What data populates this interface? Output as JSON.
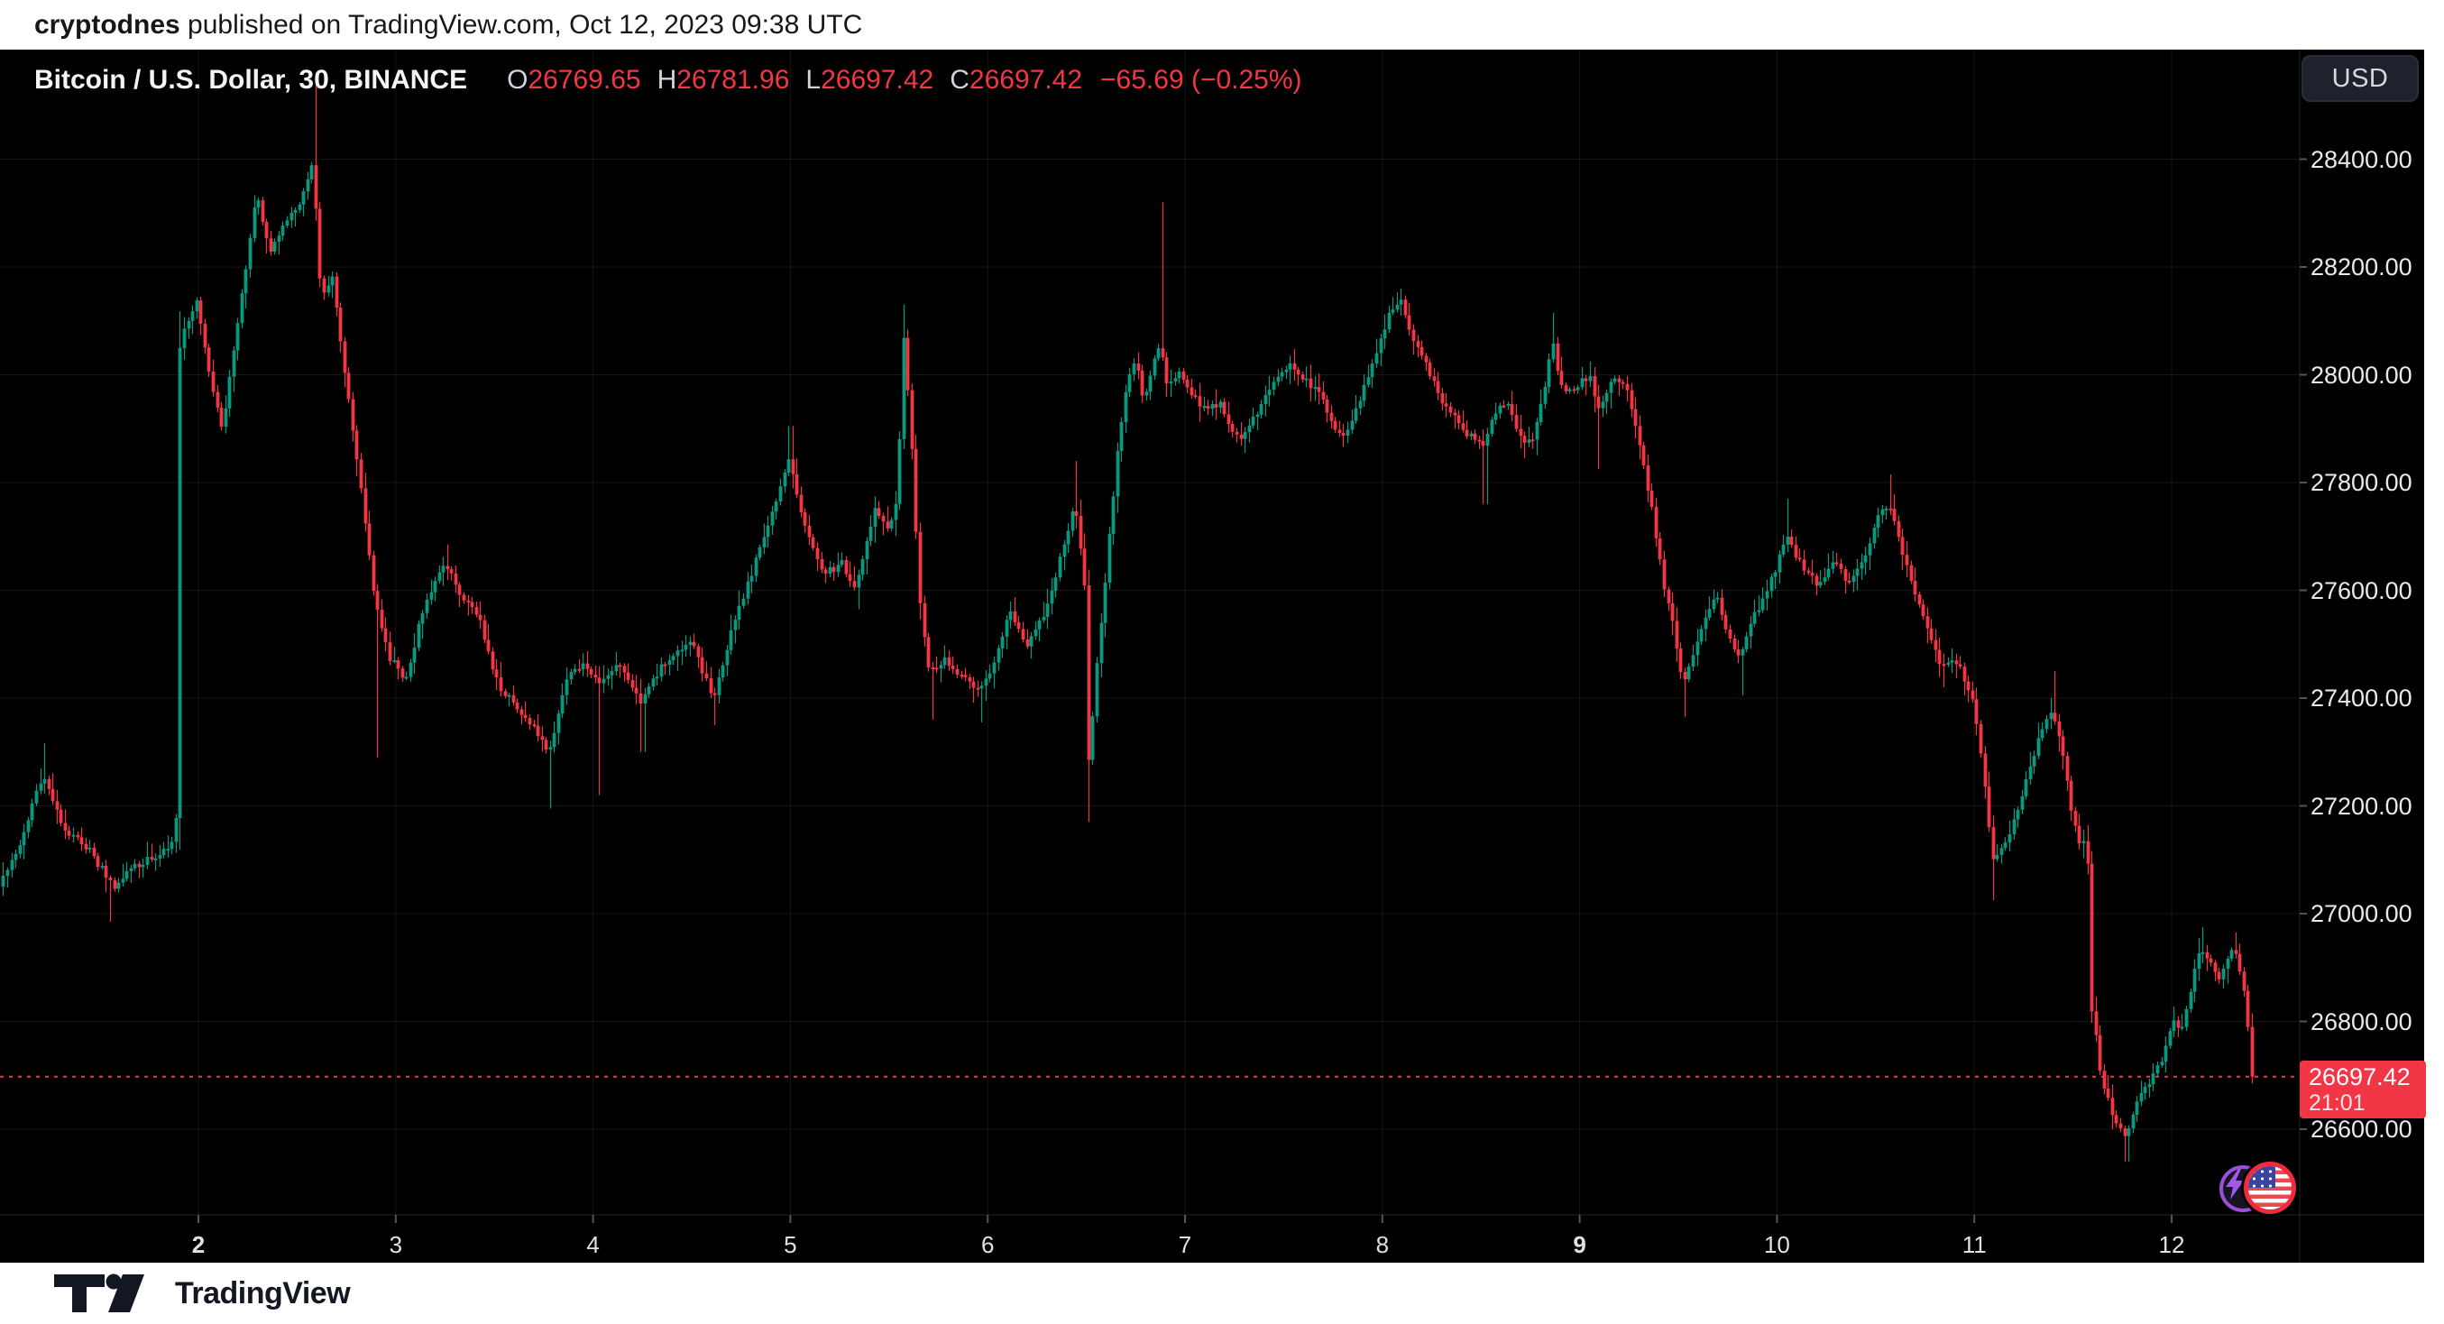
{
  "banner": {
    "author": "cryptodnes",
    "rest": " published on TradingView.com, Oct 12, 2023 09:38 UTC"
  },
  "legend": {
    "title": "Bitcoin / U.S. Dollar, 30, BINANCE",
    "items": [
      {
        "label": "O",
        "value": "26769.65"
      },
      {
        "label": "H",
        "value": "26781.96"
      },
      {
        "label": "L",
        "value": "26697.42"
      },
      {
        "label": "C",
        "value": "26697.42"
      }
    ],
    "change": "−65.69 (−0.25%)"
  },
  "currency_button": {
    "label": "USD"
  },
  "price_scale": {
    "tick_labels": [
      "28400.00",
      "28200.00",
      "28000.00",
      "27800.00",
      "27600.00",
      "27400.00",
      "27200.00",
      "27000.00",
      "26800.00",
      "26600.00"
    ],
    "tag": {
      "line1": "26697.42",
      "line2": "21:01"
    }
  },
  "time_scale": {
    "ticks": [
      {
        "day": 2,
        "label": "2",
        "bold": true
      },
      {
        "day": 3,
        "label": "3",
        "bold": false
      },
      {
        "day": 4,
        "label": "4",
        "bold": false
      },
      {
        "day": 5,
        "label": "5",
        "bold": false
      },
      {
        "day": 6,
        "label": "6",
        "bold": false
      },
      {
        "day": 7,
        "label": "7",
        "bold": false
      },
      {
        "day": 8,
        "label": "8",
        "bold": false
      },
      {
        "day": 9,
        "label": "9",
        "bold": true
      },
      {
        "day": 10,
        "label": "10",
        "bold": false
      },
      {
        "day": 11,
        "label": "11",
        "bold": false
      },
      {
        "day": 12,
        "label": "12",
        "bold": false
      }
    ]
  },
  "footer": {
    "brand": "TradingView"
  },
  "colors": {
    "up": "#089981",
    "down": "#f23645",
    "background": "#000000",
    "grid": "rgba(255,255,255,0.08)",
    "axis_border": "rgba(255,255,255,0.14)",
    "axis_tick": "#50545e",
    "axis_text": "#e8eaec",
    "tag_bg": "#f23645",
    "dotted_line": "#f23645"
  },
  "chart_data": {
    "type": "candlestick",
    "symbol": "Bitcoin / U.S. Dollar",
    "interval": "30",
    "exchange": "BINANCE",
    "currency": "USD",
    "ohlc_current": {
      "open": 26769.65,
      "high": 26781.96,
      "low": 26697.42,
      "close": 26697.42,
      "change": -65.69,
      "change_pct": -0.25
    },
    "last_price": 26697.42,
    "countdown": "21:01",
    "y_axis": {
      "min": 26450,
      "max": 28620,
      "ticks": [
        28400,
        28200,
        28000,
        27800,
        27600,
        27400,
        27200,
        27000,
        26800,
        26600
      ]
    },
    "x_axis": {
      "days_oct_2023": [
        2,
        3,
        4,
        5,
        6,
        7,
        8,
        9,
        10,
        11,
        12
      ],
      "bold_days": [
        2,
        9
      ]
    },
    "bars_per_day": 48,
    "t_start": 1.0,
    "t_end": 12.42,
    "price_path": [
      [
        1.0,
        27050
      ],
      [
        1.1,
        27120
      ],
      [
        1.22,
        27260
      ],
      [
        1.32,
        27160
      ],
      [
        1.45,
        27120
      ],
      [
        1.58,
        27050
      ],
      [
        1.7,
        27090
      ],
      [
        1.82,
        27110
      ],
      [
        1.895,
        27140
      ],
      [
        1.917,
        28065
      ],
      [
        2.0,
        28140
      ],
      [
        2.06,
        28010
      ],
      [
        2.13,
        27900
      ],
      [
        2.22,
        28120
      ],
      [
        2.3,
        28340
      ],
      [
        2.37,
        28230
      ],
      [
        2.45,
        28280
      ],
      [
        2.53,
        28320
      ],
      [
        2.59,
        28400
      ],
      [
        2.63,
        28140
      ],
      [
        2.69,
        28180
      ],
      [
        2.75,
        28010
      ],
      [
        2.82,
        27830
      ],
      [
        2.9,
        27590
      ],
      [
        2.97,
        27480
      ],
      [
        3.06,
        27430
      ],
      [
        3.15,
        27570
      ],
      [
        3.26,
        27650
      ],
      [
        3.34,
        27590
      ],
      [
        3.43,
        27550
      ],
      [
        3.53,
        27420
      ],
      [
        3.63,
        27380
      ],
      [
        3.72,
        27340
      ],
      [
        3.79,
        27300
      ],
      [
        3.87,
        27430
      ],
      [
        3.96,
        27470
      ],
      [
        4.04,
        27420
      ],
      [
        4.13,
        27470
      ],
      [
        4.25,
        27390
      ],
      [
        4.36,
        27460
      ],
      [
        4.5,
        27510
      ],
      [
        4.62,
        27400
      ],
      [
        4.73,
        27550
      ],
      [
        4.83,
        27650
      ],
      [
        4.93,
        27760
      ],
      [
        5.0,
        27840
      ],
      [
        5.09,
        27710
      ],
      [
        5.18,
        27630
      ],
      [
        5.27,
        27650
      ],
      [
        5.34,
        27600
      ],
      [
        5.44,
        27760
      ],
      [
        5.5,
        27710
      ],
      [
        5.555,
        27780
      ],
      [
        5.578,
        28085
      ],
      [
        5.62,
        27900
      ],
      [
        5.66,
        27600
      ],
      [
        5.71,
        27450
      ],
      [
        5.79,
        27470
      ],
      [
        5.88,
        27440
      ],
      [
        5.97,
        27410
      ],
      [
        6.04,
        27460
      ],
      [
        6.12,
        27560
      ],
      [
        6.21,
        27500
      ],
      [
        6.31,
        27570
      ],
      [
        6.4,
        27690
      ],
      [
        6.45,
        27770
      ],
      [
        6.5,
        27610
      ],
      [
        6.521,
        27280
      ],
      [
        6.56,
        27450
      ],
      [
        6.6,
        27600
      ],
      [
        6.64,
        27760
      ],
      [
        6.68,
        27900
      ],
      [
        6.72,
        27990
      ],
      [
        6.76,
        28030
      ],
      [
        6.8,
        27950
      ],
      [
        6.84,
        28010
      ],
      [
        6.88,
        28060
      ],
      [
        6.92,
        27980
      ],
      [
        6.98,
        28000
      ],
      [
        7.05,
        27960
      ],
      [
        7.12,
        27930
      ],
      [
        7.18,
        27950
      ],
      [
        7.25,
        27900
      ],
      [
        7.3,
        27885
      ],
      [
        7.38,
        27930
      ],
      [
        7.46,
        27990
      ],
      [
        7.54,
        28020
      ],
      [
        7.62,
        27990
      ],
      [
        7.7,
        27960
      ],
      [
        7.76,
        27900
      ],
      [
        7.82,
        27880
      ],
      [
        7.9,
        27960
      ],
      [
        7.98,
        28040
      ],
      [
        8.05,
        28120
      ],
      [
        8.1,
        28140
      ],
      [
        8.16,
        28060
      ],
      [
        8.22,
        28030
      ],
      [
        8.3,
        27960
      ],
      [
        8.38,
        27920
      ],
      [
        8.44,
        27890
      ],
      [
        8.52,
        27870
      ],
      [
        8.58,
        27930
      ],
      [
        8.64,
        27950
      ],
      [
        8.7,
        27890
      ],
      [
        8.76,
        27870
      ],
      [
        8.82,
        27950
      ],
      [
        8.87,
        28060
      ],
      [
        8.92,
        27970
      ],
      [
        9.0,
        27980
      ],
      [
        9.06,
        28000
      ],
      [
        9.1,
        27930
      ],
      [
        9.17,
        27990
      ],
      [
        9.24,
        27980
      ],
      [
        9.3,
        27900
      ],
      [
        9.37,
        27760
      ],
      [
        9.43,
        27620
      ],
      [
        9.48,
        27540
      ],
      [
        9.53,
        27430
      ],
      [
        9.58,
        27470
      ],
      [
        9.64,
        27540
      ],
      [
        9.7,
        27590
      ],
      [
        9.76,
        27520
      ],
      [
        9.82,
        27470
      ],
      [
        9.89,
        27550
      ],
      [
        9.96,
        27600
      ],
      [
        10.06,
        27700
      ],
      [
        10.14,
        27640
      ],
      [
        10.22,
        27610
      ],
      [
        10.3,
        27650
      ],
      [
        10.38,
        27610
      ],
      [
        10.46,
        27670
      ],
      [
        10.53,
        27745
      ],
      [
        10.58,
        27755
      ],
      [
        10.66,
        27650
      ],
      [
        10.74,
        27560
      ],
      [
        10.84,
        27460
      ],
      [
        10.92,
        27470
      ],
      [
        11.0,
        27400
      ],
      [
        11.05,
        27280
      ],
      [
        11.1,
        27100
      ],
      [
        11.16,
        27120
      ],
      [
        11.22,
        27180
      ],
      [
        11.28,
        27260
      ],
      [
        11.34,
        27330
      ],
      [
        11.4,
        27380
      ],
      [
        11.45,
        27310
      ],
      [
        11.5,
        27190
      ],
      [
        11.55,
        27120
      ],
      [
        11.58,
        27140
      ],
      [
        11.602,
        26830
      ],
      [
        11.65,
        26700
      ],
      [
        11.7,
        26640
      ],
      [
        11.74,
        26600
      ],
      [
        11.78,
        26580
      ],
      [
        11.82,
        26640
      ],
      [
        11.87,
        26680
      ],
      [
        11.92,
        26700
      ],
      [
        11.97,
        26740
      ],
      [
        12.02,
        26800
      ],
      [
        12.06,
        26790
      ],
      [
        12.11,
        26870
      ],
      [
        12.16,
        26940
      ],
      [
        12.2,
        26910
      ],
      [
        12.24,
        26880
      ],
      [
        12.28,
        26900
      ],
      [
        12.32,
        26940
      ],
      [
        12.35,
        26900
      ],
      [
        12.38,
        26840
      ],
      [
        12.405,
        26770
      ],
      [
        12.42,
        26697.42
      ]
    ],
    "wick_spikes": [
      {
        "t": 1.22,
        "type": "high",
        "price": 27316
      },
      {
        "t": 1.56,
        "type": "low",
        "price": 26985
      },
      {
        "t": 2.59,
        "type": "high",
        "price": 28560
      },
      {
        "t": 2.9,
        "type": "low",
        "price": 27290
      },
      {
        "t": 3.26,
        "type": "high",
        "price": 27685
      },
      {
        "t": 3.79,
        "type": "low",
        "price": 27195
      },
      {
        "t": 4.04,
        "type": "low",
        "price": 27220
      },
      {
        "t": 4.25,
        "type": "low",
        "price": 27300
      },
      {
        "t": 4.62,
        "type": "low",
        "price": 27350
      },
      {
        "t": 5.0,
        "type": "high",
        "price": 27905
      },
      {
        "t": 5.34,
        "type": "low",
        "price": 27565
      },
      {
        "t": 5.578,
        "type": "high",
        "price": 28130
      },
      {
        "t": 5.71,
        "type": "low",
        "price": 27360
      },
      {
        "t": 5.97,
        "type": "low",
        "price": 27355
      },
      {
        "t": 6.45,
        "type": "high",
        "price": 27840
      },
      {
        "t": 6.51,
        "type": "low",
        "price": 27170
      },
      {
        "t": 6.88,
        "type": "high",
        "price": 28320
      },
      {
        "t": 7.3,
        "type": "low",
        "price": 27855
      },
      {
        "t": 8.1,
        "type": "high",
        "price": 28160
      },
      {
        "t": 8.52,
        "type": "low",
        "price": 27760
      },
      {
        "t": 8.87,
        "type": "high",
        "price": 28115
      },
      {
        "t": 9.1,
        "type": "low",
        "price": 27825
      },
      {
        "t": 9.53,
        "type": "low",
        "price": 27365
      },
      {
        "t": 9.82,
        "type": "low",
        "price": 27405
      },
      {
        "t": 10.06,
        "type": "high",
        "price": 27770
      },
      {
        "t": 10.58,
        "type": "high",
        "price": 27815
      },
      {
        "t": 10.84,
        "type": "low",
        "price": 27420
      },
      {
        "t": 11.1,
        "type": "low",
        "price": 27025
      },
      {
        "t": 11.4,
        "type": "high",
        "price": 27450
      },
      {
        "t": 11.77,
        "type": "low",
        "price": 26540
      },
      {
        "t": 12.16,
        "type": "high",
        "price": 26975
      },
      {
        "t": 12.32,
        "type": "high",
        "price": 26965
      },
      {
        "t": 12.41,
        "type": "low",
        "price": 26690
      }
    ]
  }
}
